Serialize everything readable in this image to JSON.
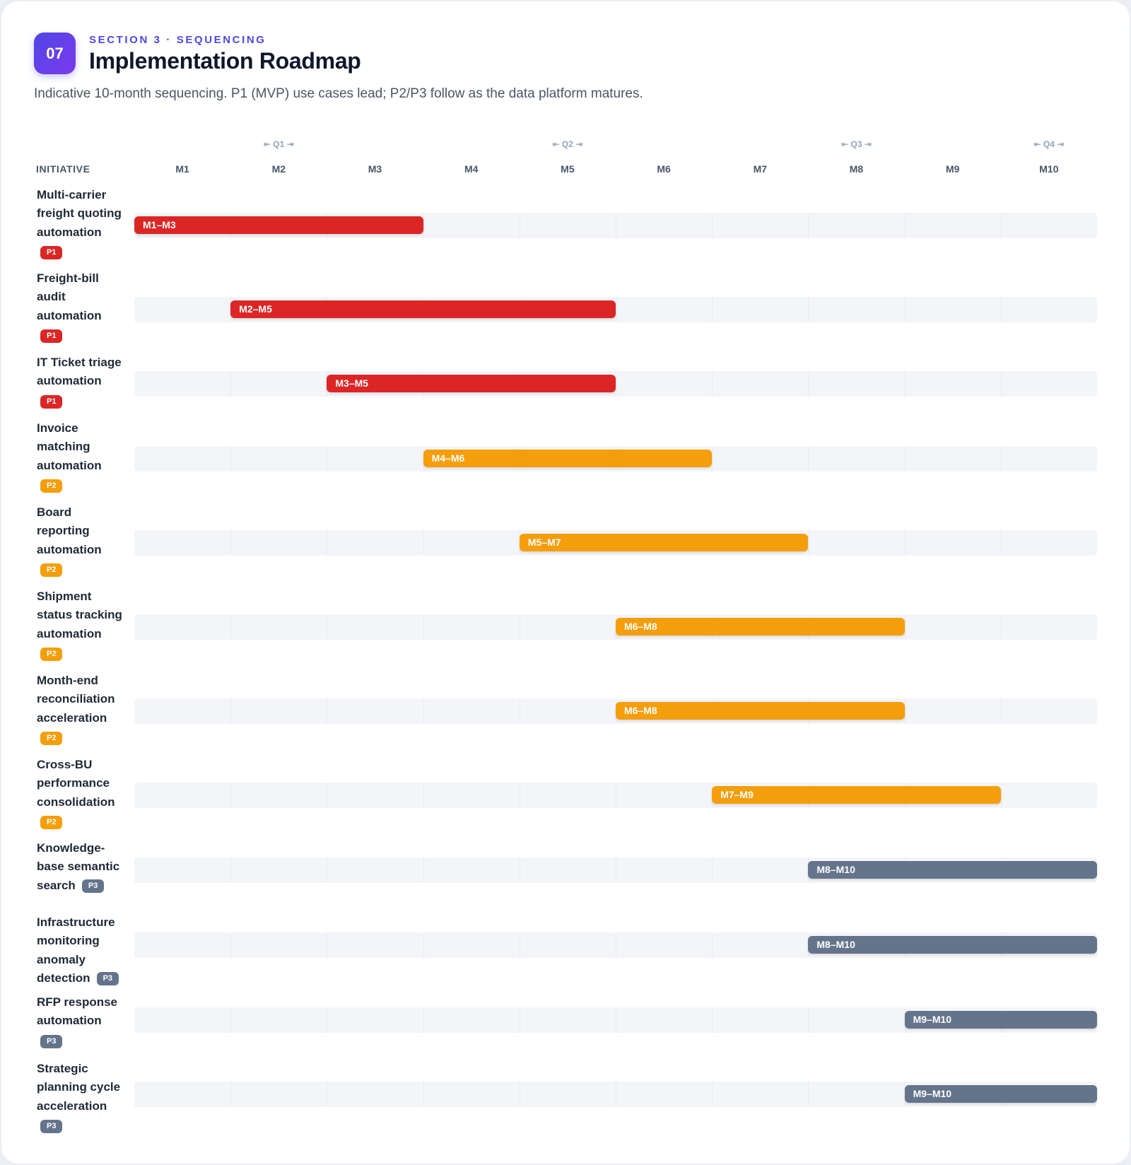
{
  "header": {
    "section_number": "07",
    "eyebrow": "SECTION 3 · SEQUENCING",
    "title": "Implementation Roadmap",
    "subtitle": "Indicative 10-month sequencing. P1 (MVP) use cases lead; P2/P3 follow as the data platform matures."
  },
  "chart_data": {
    "type": "gantt",
    "category_axis_label": "INITIATIVE",
    "months": [
      "M1",
      "M2",
      "M3",
      "M4",
      "M5",
      "M6",
      "M7",
      "M8",
      "M9",
      "M10"
    ],
    "quarters": [
      {
        "label": "⇤ Q1 ⇥",
        "month": 2
      },
      {
        "label": "⇤ Q2 ⇥",
        "month": 5
      },
      {
        "label": "⇤ Q3 ⇥",
        "month": 8
      },
      {
        "label": "⇤ Q4 ⇥",
        "month": 10
      }
    ],
    "priority_colors": {
      "P1": "#dc2626",
      "P2": "#f59e0b",
      "P3": "#64748b"
    },
    "rows": [
      {
        "name": "Multi-carrier freight quoting automation",
        "priority": "P1",
        "start": 1,
        "end": 3,
        "bar_label": "M1–M3"
      },
      {
        "name": "Freight-bill audit automation",
        "priority": "P1",
        "start": 2,
        "end": 5,
        "bar_label": "M2–M5"
      },
      {
        "name": "IT Ticket triage automation",
        "priority": "P1",
        "start": 3,
        "end": 5,
        "bar_label": "M3–M5"
      },
      {
        "name": "Invoice matching automation",
        "priority": "P2",
        "start": 4,
        "end": 6,
        "bar_label": "M4–M6"
      },
      {
        "name": "Board reporting automation",
        "priority": "P2",
        "start": 5,
        "end": 7,
        "bar_label": "M5–M7"
      },
      {
        "name": "Shipment status tracking automation",
        "priority": "P2",
        "start": 6,
        "end": 8,
        "bar_label": "M6–M8"
      },
      {
        "name": "Month-end reconciliation acceleration",
        "priority": "P2",
        "start": 6,
        "end": 8,
        "bar_label": "M6–M8"
      },
      {
        "name": "Cross-BU performance consolidation",
        "priority": "P2",
        "start": 7,
        "end": 9,
        "bar_label": "M7–M9"
      },
      {
        "name": "Knowledge-base semantic search",
        "priority": "P3",
        "start": 8,
        "end": 10,
        "bar_label": "M8–M10"
      },
      {
        "name": "Infrastructure monitoring anomaly detection",
        "priority": "P3",
        "start": 8,
        "end": 10,
        "bar_label": "M8–M10"
      },
      {
        "name": "RFP response automation",
        "priority": "P3",
        "start": 9,
        "end": 10,
        "bar_label": "M9–M10"
      },
      {
        "name": "Strategic planning cycle acceleration",
        "priority": "P3",
        "start": 9,
        "end": 10,
        "bar_label": "M9–M10"
      }
    ]
  }
}
